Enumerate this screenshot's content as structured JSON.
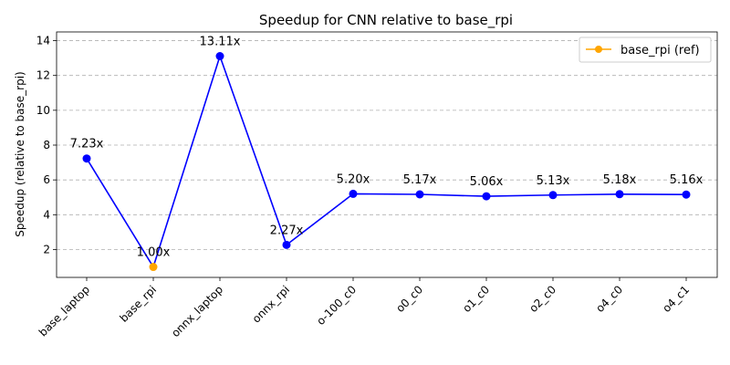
{
  "chart_data": {
    "type": "line",
    "title": "Speedup for CNN relative to base_rpi",
    "xlabel": "",
    "ylabel": "Speedup (relative to base_rpi)",
    "categories": [
      "base_laptop",
      "base_rpi",
      "onnx_laptop",
      "onnx_rpi",
      "o-100_c0",
      "o0_c0",
      "o1_c0",
      "o2_c0",
      "o4_c0",
      "o4_c1"
    ],
    "values": [
      7.23,
      1.0,
      13.11,
      2.27,
      5.2,
      5.17,
      5.06,
      5.13,
      5.18,
      5.16
    ],
    "data_labels": [
      "7.23x",
      "1.00x",
      "13.11x",
      "2.27x",
      "5.20x",
      "5.17x",
      "5.06x",
      "5.13x",
      "5.18x",
      "5.16x"
    ],
    "ylim": [
      0.4,
      14.5
    ],
    "yticks": [
      2,
      4,
      6,
      8,
      10,
      12,
      14
    ],
    "grid": "y",
    "line_color": "#0000ff",
    "reference": {
      "category": "base_rpi",
      "color": "#ffa500"
    },
    "legend": {
      "placement": "top-right",
      "entries": [
        {
          "label": "base_rpi (ref)",
          "color": "#ffa500"
        }
      ]
    }
  }
}
